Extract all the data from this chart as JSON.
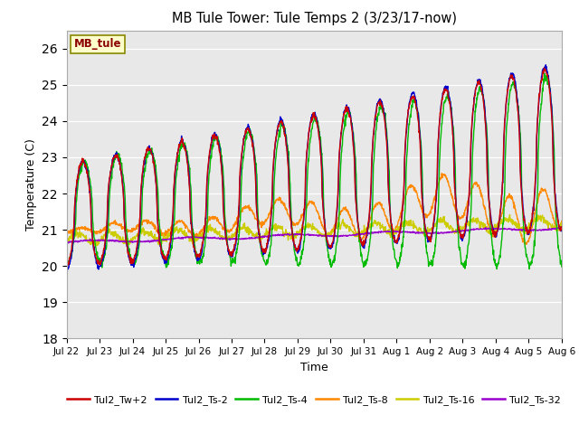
{
  "title": "MB Tule Tower: Tule Temps 2 (3/23/17-now)",
  "xlabel": "Time",
  "ylabel": "Temperature (C)",
  "ylim": [
    18.0,
    26.5
  ],
  "yticks": [
    18.0,
    19.0,
    20.0,
    21.0,
    22.0,
    23.0,
    24.0,
    25.0,
    26.0
  ],
  "bg_color": "#e8e8e8",
  "legend_label": "MB_tule",
  "series_colors": {
    "Tul2_Tw+2": "#cc0000",
    "Tul2_Ts-2": "#0000cc",
    "Tul2_Ts-4": "#00bb00",
    "Tul2_Ts-8": "#ff8800",
    "Tul2_Ts-16": "#cccc00",
    "Tul2_Ts-32": "#9900cc"
  },
  "x_tick_labels": [
    "Jul 22",
    "Jul 23",
    "Jul 24",
    "Jul 25",
    "Jul 26",
    "Jul 27",
    "Jul 28",
    "Jul 29",
    "Jul 30",
    "Jul 31",
    "Aug 1",
    "Aug 2",
    "Aug 3",
    "Aug 4",
    "Aug 5",
    "Aug 6"
  ],
  "days": 15
}
